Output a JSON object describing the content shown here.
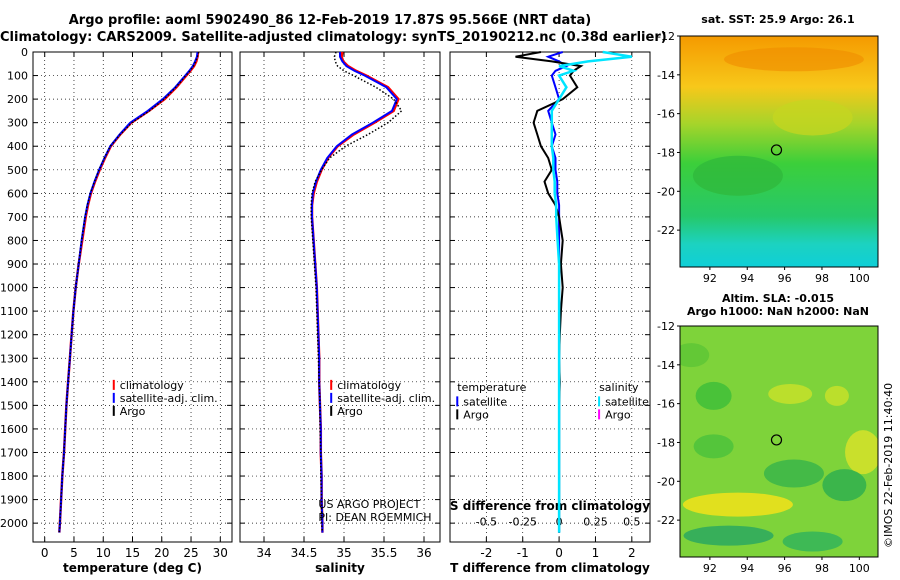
{
  "header": {
    "title_line1": "Argo profile: aoml 5902490_86 12-Feb-2019 17.87S 95.566E (NRT data)",
    "title_line2": "Climatology: CARS2009. Satellite-adjusted climatology: synTS_20190212.nc (0.38d earlier)"
  },
  "colors": {
    "climatology": "#ff0000",
    "satellite": "#0000ff",
    "argo": "#000000",
    "salinity_satellite": "#00e5ff",
    "salinity_argo": "#ff00ff"
  },
  "chart_data": [
    {
      "type": "line",
      "name": "temperature",
      "xlabel": "temperature (deg C)",
      "ylabel": "",
      "xlim": [
        -2,
        32
      ],
      "ylim": [
        2080,
        0
      ],
      "xticks": [
        0,
        5,
        10,
        15,
        20,
        25,
        30
      ],
      "xtick_labels": [
        "0",
        "5",
        "10",
        "15",
        "20",
        "25",
        "30"
      ],
      "yticks": [
        0,
        100,
        200,
        300,
        400,
        500,
        600,
        700,
        800,
        900,
        1000,
        1100,
        1200,
        1300,
        1400,
        1500,
        1600,
        1700,
        1800,
        1900,
        2000
      ],
      "ytick_labels": [
        "0",
        "100",
        "200",
        "300",
        "400",
        "500",
        "600",
        "700",
        "800",
        "900",
        "1000",
        "1100",
        "1200",
        "1300",
        "1400",
        "1500",
        "1600",
        "1700",
        "1800",
        "1900",
        "2000"
      ],
      "grid": true,
      "depth": [
        0,
        20,
        40,
        60,
        80,
        100,
        150,
        200,
        250,
        300,
        350,
        400,
        450,
        500,
        550,
        600,
        650,
        700,
        800,
        900,
        1000,
        1100,
        1200,
        1300,
        1400,
        1500,
        1600,
        1700,
        1800,
        1900,
        2000,
        2040
      ],
      "series": [
        {
          "name": "climatology",
          "values": [
            26.2,
            26.1,
            25.9,
            25.5,
            24.9,
            24.2,
            22.5,
            20.5,
            17.8,
            14.8,
            12.9,
            11.3,
            10.3,
            9.4,
            8.6,
            7.9,
            7.4,
            7.0,
            6.4,
            5.8,
            5.3,
            4.9,
            4.6,
            4.3,
            4.0,
            3.7,
            3.5,
            3.3,
            3.0,
            2.8,
            2.6,
            2.5
          ]
        },
        {
          "name": "satellite-adj. clim.",
          "values": [
            26.1,
            26.0,
            25.7,
            25.3,
            24.7,
            24.0,
            22.3,
            20.2,
            17.6,
            14.6,
            12.8,
            11.2,
            10.2,
            9.3,
            8.5,
            7.8,
            7.3,
            6.9,
            6.3,
            5.8,
            5.3,
            4.9,
            4.6,
            4.3,
            4.0,
            3.7,
            3.5,
            3.3,
            3.0,
            2.8,
            2.6,
            2.5
          ]
        },
        {
          "name": "Argo",
          "values": [
            26.3,
            26.1,
            25.8,
            25.4,
            24.8,
            24.1,
            22.4,
            20.4,
            17.9,
            14.9,
            12.9,
            11.2,
            10.2,
            9.3,
            8.5,
            7.8,
            7.3,
            6.9,
            6.3,
            5.8,
            5.3,
            4.9,
            4.6,
            4.3,
            4.0,
            3.7,
            3.5,
            3.3,
            3.0,
            2.8,
            2.6,
            2.5
          ]
        }
      ],
      "legend": [
        "climatology",
        "satellite-adj. clim.",
        "Argo"
      ],
      "legend_position": "bottom-right"
    },
    {
      "type": "line",
      "name": "salinity",
      "xlabel": "salinity",
      "xlim": [
        33.7,
        36.2
      ],
      "ylim": [
        2080,
        0
      ],
      "xticks": [
        34,
        34.5,
        35,
        35.5,
        36
      ],
      "xtick_labels": [
        "34",
        "34.5",
        "35",
        "35.5",
        "36"
      ],
      "grid": true,
      "depth": [
        0,
        20,
        40,
        60,
        80,
        100,
        150,
        200,
        250,
        300,
        350,
        400,
        450,
        500,
        550,
        600,
        650,
        700,
        800,
        900,
        1000,
        1100,
        1200,
        1300,
        1400,
        1500,
        1600,
        1700,
        1800,
        1900,
        2000,
        2040
      ],
      "series": [
        {
          "name": "climatology",
          "values": [
            34.98,
            34.97,
            34.99,
            35.05,
            35.15,
            35.28,
            35.55,
            35.68,
            35.62,
            35.38,
            35.12,
            34.92,
            34.8,
            34.72,
            34.66,
            34.62,
            34.6,
            34.6,
            34.62,
            34.64,
            34.66,
            34.67,
            34.68,
            34.69,
            34.69,
            34.7,
            34.71,
            34.71,
            34.72,
            34.72,
            34.73,
            34.73
          ]
        },
        {
          "name": "satellite-adj. clim.",
          "values": [
            34.95,
            34.95,
            34.98,
            35.03,
            35.13,
            35.26,
            35.53,
            35.66,
            35.6,
            35.36,
            35.1,
            34.91,
            34.79,
            34.71,
            34.65,
            34.61,
            34.6,
            34.6,
            34.62,
            34.64,
            34.66,
            34.67,
            34.68,
            34.69,
            34.69,
            34.7,
            34.71,
            34.71,
            34.72,
            34.72,
            34.73,
            34.73
          ]
        },
        {
          "name": "Argo",
          "values": [
            34.9,
            34.88,
            34.89,
            34.92,
            35.0,
            35.12,
            35.4,
            35.62,
            35.72,
            35.55,
            35.3,
            35.02,
            34.82,
            34.72,
            34.64,
            34.6,
            34.59,
            34.59,
            34.61,
            34.63,
            34.65,
            34.66,
            34.67,
            34.68,
            34.69,
            34.7,
            34.7,
            34.71,
            34.71,
            34.72,
            34.72,
            34.73
          ]
        }
      ],
      "legend": [
        "climatology",
        "satellite-adj. clim.",
        "Argo"
      ],
      "legend_position": "bottom-right",
      "annotation_line1": "US ARGO PROJECT",
      "annotation_line2": "PI: DEAN ROEMMICH"
    },
    {
      "type": "line",
      "name": "differences",
      "xlabel": "T difference from climatology",
      "x2label": "S difference from climatology",
      "xlim": [
        -3,
        2.5
      ],
      "ylim": [
        2080,
        0
      ],
      "xticks": [
        -2,
        -1,
        0,
        1,
        2
      ],
      "xtick_labels": [
        "-2",
        "-1",
        "0",
        "1",
        "2"
      ],
      "x2ticks": [
        -0.5,
        -0.25,
        0,
        0.25,
        0.5
      ],
      "x2tick_labels": [
        "-0.5",
        "-0.25",
        "0",
        "0.25",
        "0.5"
      ],
      "grid": true,
      "depth": [
        0,
        20,
        40,
        60,
        80,
        100,
        150,
        200,
        250,
        300,
        350,
        400,
        450,
        500,
        550,
        600,
        650,
        700,
        800,
        900,
        1000,
        1100,
        1200,
        1300,
        1400,
        1500,
        1600,
        1700,
        1800,
        1900,
        2000,
        2040
      ],
      "series": [
        {
          "name": "temperature satellite",
          "values": [
            0.1,
            -0.3,
            0.0,
            0.2,
            -0.1,
            -0.2,
            -0.1,
            0.0,
            -0.3,
            -0.2,
            -0.1,
            -0.2,
            -0.1,
            -0.1,
            -0.05,
            -0.05,
            0.0,
            0.0,
            0.0,
            0.0,
            0.0,
            0.0,
            0.0,
            0.0,
            0.0,
            0.0,
            0.0,
            0.0,
            0.0,
            0.0,
            0.0,
            0.0
          ]
        },
        {
          "name": "temperature Argo",
          "values": [
            -0.5,
            -1.2,
            -0.2,
            0.6,
            0.4,
            0.3,
            0.5,
            0.1,
            -0.6,
            -0.7,
            -0.6,
            -0.5,
            -0.3,
            -0.2,
            -0.4,
            -0.3,
            -0.1,
            0.0,
            0.1,
            0.05,
            0.1,
            0.05,
            0.02,
            0.0,
            0.02,
            0.0,
            0.0,
            0.0,
            0.0,
            0.0,
            0.0,
            0.0
          ]
        },
        {
          "name": "salinity satellite",
          "values": [
            0.3,
            0.5,
            0.2,
            0.0,
            0.1,
            0.0,
            0.05,
            0.0,
            -0.05,
            -0.05,
            -0.05,
            -0.05,
            -0.04,
            -0.04,
            -0.03,
            -0.03,
            -0.02,
            -0.02,
            -0.01,
            0.0,
            0.0,
            0.0,
            0.0,
            0.0,
            0.0,
            0.0,
            0.0,
            0.0,
            0.0,
            0.0,
            0.0,
            0.0
          ]
        }
      ],
      "legend_temperature_title": "temperature",
      "legend_salinity_title": "salinity",
      "legend_items": [
        "satellite",
        "Argo"
      ],
      "legend_position": "bottom"
    },
    {
      "type": "heatmap",
      "name": "sst-map",
      "title": "sat. SST: 25.9 Argo: 26.1",
      "xlim": [
        90.4,
        101
      ],
      "ylim": [
        -23.9,
        -12
      ],
      "xticks": [
        92,
        94,
        96,
        98,
        100
      ],
      "xtick_labels": [
        "92",
        "94",
        "96",
        "98",
        "100"
      ],
      "yticks": [
        -12,
        -14,
        -16,
        -18,
        -20,
        -22
      ],
      "ytick_labels": [
        "-12",
        "-14",
        "-16",
        "-18",
        "-20",
        "-22"
      ],
      "marker": {
        "lon": 95.566,
        "lat": -17.87
      }
    },
    {
      "type": "heatmap",
      "name": "sla-map",
      "title_line1": "Altim. SLA: -0.015",
      "title_line2": "Argo h1000: NaN h2000: NaN",
      "xlim": [
        90.4,
        101
      ],
      "ylim": [
        -23.9,
        -12
      ],
      "xticks": [
        92,
        94,
        96,
        98,
        100
      ],
      "xtick_labels": [
        "92",
        "94",
        "96",
        "98",
        "100"
      ],
      "yticks": [
        -12,
        -14,
        -16,
        -18,
        -20,
        -22
      ],
      "ytick_labels": [
        "-12",
        "-14",
        "-16",
        "-18",
        "-20",
        "-22"
      ],
      "marker": {
        "lon": 95.566,
        "lat": -17.87
      }
    }
  ],
  "footer": {
    "stamp": "©IMOS 22-Feb-2019 11:40:40"
  }
}
